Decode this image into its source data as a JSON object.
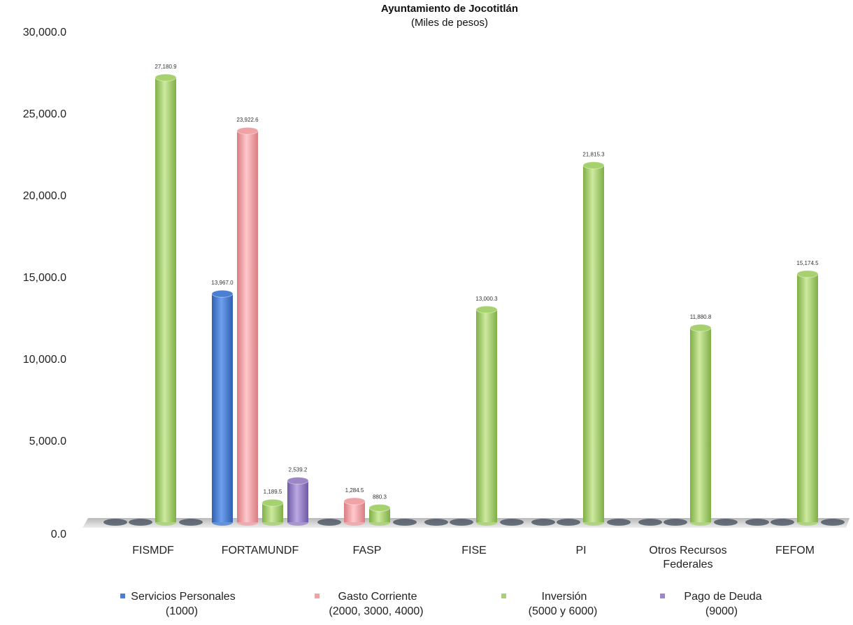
{
  "chart_data": {
    "type": "bar",
    "title": "Ayuntamiento de Jocotitlán",
    "subtitle": "(Miles de pesos)",
    "categories": [
      "FISMDF",
      "FORTAMUNDF",
      "FASP",
      "FISE",
      "PI",
      "Otros Recursos Federales",
      "FEFOM"
    ],
    "category_lines": [
      [
        "FISMDF"
      ],
      [
        "FORTAMUNDF"
      ],
      [
        "FASP"
      ],
      [
        "FISE"
      ],
      [
        "PI"
      ],
      [
        "Otros Recursos",
        "Federales"
      ],
      [
        "FEFOM"
      ]
    ],
    "series": [
      {
        "name": "Servicios Personales (1000)",
        "legend_lines": [
          "Servicios Personales",
          "(1000)"
        ],
        "color": "#4a7fd4",
        "values": [
          0,
          13967.0,
          0,
          0,
          0,
          0,
          0
        ]
      },
      {
        "name": "Gasto Corriente (2000, 3000, 4000)",
        "legend_lines": [
          "Gasto Corriente",
          "(2000, 3000, 4000)"
        ],
        "color": "#f0a3a6",
        "values": [
          0,
          23922.6,
          1284.5,
          0,
          0,
          0,
          0
        ]
      },
      {
        "name": "Inversión (5000 y 6000)",
        "legend_lines": [
          "Inversión",
          "(5000 y 6000)"
        ],
        "color": "#a6d16e",
        "values": [
          27180.9,
          1189.5,
          880.3,
          13000.3,
          21815.3,
          11880.8,
          15174.5
        ]
      },
      {
        "name": "Pago de Deuda (9000)",
        "legend_lines": [
          "Pago de Deuda",
          "(9000)"
        ],
        "color": "#9b86c6",
        "values": [
          0,
          2539.2,
          0,
          0,
          0,
          0,
          0
        ]
      }
    ],
    "data_labels": [
      [
        null,
        "13,967.0",
        null,
        null,
        null,
        null,
        null
      ],
      [
        null,
        "23,922.6",
        "1,284.5",
        null,
        null,
        null,
        null
      ],
      [
        "27,180.9",
        "1,189.5",
        "880.3",
        "13,000.3",
        "21,815.3",
        "11,880.8",
        "15,174.5"
      ],
      [
        null,
        "2,539.2",
        null,
        null,
        null,
        null,
        null
      ]
    ],
    "y_ticks": [
      "0.0",
      "5,000.0",
      "10,000.0",
      "15,000.0",
      "20,000.0",
      "25,000.0",
      "30,000.0"
    ],
    "ylim": [
      0,
      30000
    ],
    "xlabel": "",
    "ylabel": "",
    "grid": false,
    "legend_position": "bottom"
  }
}
